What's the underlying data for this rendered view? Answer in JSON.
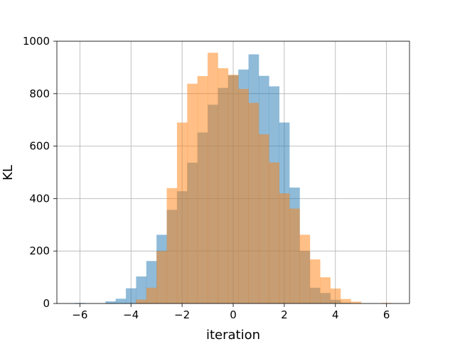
{
  "chart_data": {
    "type": "bar",
    "subtype": "overlaid-histogram",
    "title": "",
    "xlabel": "iteration",
    "ylabel": "KL",
    "xlim": [
      -6.9,
      6.9
    ],
    "ylim": [
      0,
      1000
    ],
    "xticks": [
      -6,
      -4,
      -2,
      0,
      2,
      4,
      6
    ],
    "yticks": [
      0,
      200,
      400,
      600,
      800,
      1000
    ],
    "grid": true,
    "legend": "none",
    "series": [
      {
        "color": "#1f77b4",
        "alpha": 0.5,
        "bins": [
          {
            "x0": -6.2,
            "x1": -5.8,
            "y": 2
          },
          {
            "x0": -5.8,
            "x1": -5.4,
            "y": 0
          },
          {
            "x0": -5.4,
            "x1": -5.0,
            "y": 0
          },
          {
            "x0": -5.0,
            "x1": -4.6,
            "y": 8
          },
          {
            "x0": -4.6,
            "x1": -4.2,
            "y": 18
          },
          {
            "x0": -4.2,
            "x1": -3.8,
            "y": 58
          },
          {
            "x0": -3.8,
            "x1": -3.4,
            "y": 103
          },
          {
            "x0": -3.4,
            "x1": -3.0,
            "y": 162
          },
          {
            "x0": -3.0,
            "x1": -2.6,
            "y": 262
          },
          {
            "x0": -2.6,
            "x1": -2.2,
            "y": 357
          },
          {
            "x0": -2.2,
            "x1": -1.8,
            "y": 428
          },
          {
            "x0": -1.8,
            "x1": -1.4,
            "y": 537
          },
          {
            "x0": -1.4,
            "x1": -1.0,
            "y": 652
          },
          {
            "x0": -1.0,
            "x1": -0.6,
            "y": 758
          },
          {
            "x0": -0.6,
            "x1": -0.2,
            "y": 822
          },
          {
            "x0": -0.2,
            "x1": 0.2,
            "y": 870
          },
          {
            "x0": 0.2,
            "x1": 0.6,
            "y": 892
          },
          {
            "x0": 0.6,
            "x1": 1.0,
            "y": 950
          },
          {
            "x0": 1.0,
            "x1": 1.4,
            "y": 868
          },
          {
            "x0": 1.4,
            "x1": 1.8,
            "y": 828
          },
          {
            "x0": 1.8,
            "x1": 2.2,
            "y": 690
          },
          {
            "x0": 2.2,
            "x1": 2.6,
            "y": 442
          },
          {
            "x0": 2.6,
            "x1": 3.0,
            "y": 200
          },
          {
            "x0": 3.0,
            "x1": 3.4,
            "y": 60
          },
          {
            "x0": 3.4,
            "x1": 3.8,
            "y": 40
          },
          {
            "x0": 3.8,
            "x1": 4.2,
            "y": 14
          },
          {
            "x0": 4.2,
            "x1": 4.6,
            "y": 3
          }
        ]
      },
      {
        "color": "#ff7f0e",
        "alpha": 0.5,
        "bins": [
          {
            "x0": -3.8,
            "x1": -3.4,
            "y": 15
          },
          {
            "x0": -3.4,
            "x1": -3.0,
            "y": 60
          },
          {
            "x0": -3.0,
            "x1": -2.6,
            "y": 200
          },
          {
            "x0": -2.6,
            "x1": -2.2,
            "y": 440
          },
          {
            "x0": -2.2,
            "x1": -1.8,
            "y": 690
          },
          {
            "x0": -1.8,
            "x1": -1.4,
            "y": 838
          },
          {
            "x0": -1.4,
            "x1": -1.0,
            "y": 867
          },
          {
            "x0": -1.0,
            "x1": -0.6,
            "y": 956
          },
          {
            "x0": -0.6,
            "x1": -0.2,
            "y": 897
          },
          {
            "x0": -0.2,
            "x1": 0.2,
            "y": 872
          },
          {
            "x0": 0.2,
            "x1": 0.6,
            "y": 818
          },
          {
            "x0": 0.6,
            "x1": 1.0,
            "y": 765
          },
          {
            "x0": 1.0,
            "x1": 1.4,
            "y": 645
          },
          {
            "x0": 1.4,
            "x1": 1.8,
            "y": 538
          },
          {
            "x0": 1.8,
            "x1": 2.2,
            "y": 420
          },
          {
            "x0": 2.2,
            "x1": 2.6,
            "y": 362
          },
          {
            "x0": 2.6,
            "x1": 3.0,
            "y": 262
          },
          {
            "x0": 3.0,
            "x1": 3.4,
            "y": 168
          },
          {
            "x0": 3.4,
            "x1": 3.8,
            "y": 100
          },
          {
            "x0": 3.8,
            "x1": 4.2,
            "y": 57
          },
          {
            "x0": 4.2,
            "x1": 4.6,
            "y": 17
          },
          {
            "x0": 4.6,
            "x1": 5.0,
            "y": 7
          },
          {
            "x0": 5.8,
            "x1": 6.2,
            "y": 2
          }
        ]
      }
    ]
  }
}
